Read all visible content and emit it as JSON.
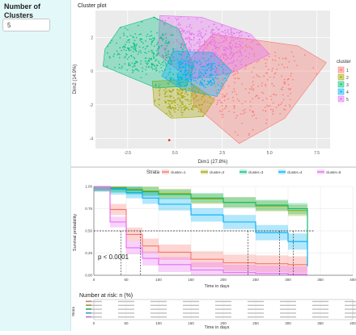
{
  "sidebar": {
    "label": "Number of\nClusters",
    "input_value": "5"
  },
  "cluster_plot": {
    "title": "Cluster plot",
    "xlabel": "Dim1 (27.8%)",
    "ylabel": "Dim2 (14.9%)",
    "x_ticks": [
      "-2.5",
      "0.0",
      "2.5",
      "5.0",
      "7.5"
    ],
    "y_ticks": [
      "2",
      "0",
      "-2",
      "-4"
    ],
    "legend_title": "cluster",
    "legend_items": [
      "1",
      "2",
      "3",
      "4",
      "5"
    ]
  },
  "survival_plot": {
    "strata_label": "Strata",
    "legend_items": [
      "cluster=1",
      "cluster=2",
      "cluster=3",
      "cluster=4",
      "cluster=5"
    ],
    "ylabel": "Survival probability",
    "xlabel": "Time in days",
    "y_ticks": [
      "1.00",
      "0.75",
      "0.50",
      "0.25",
      "0.00"
    ],
    "x_ticks": [
      "0",
      "50",
      "100",
      "150",
      "200",
      "250",
      "300",
      "350",
      "400"
    ],
    "pvalue": "p < 0.0001"
  },
  "risk_table": {
    "title": "Number at risk: n (%)",
    "strata_label": "Strata",
    "xlabel": "Time in days",
    "x_ticks": [
      "0",
      "50",
      "100",
      "150",
      "200",
      "250",
      "300",
      "350",
      "400"
    ]
  },
  "colors": {
    "cluster1": "#f8766d",
    "cluster2": "#a3a500",
    "cluster3": "#00bf7d",
    "cluster4": "#00b0f6",
    "cluster5": "#e76bf3",
    "sidebar": "#e3f8f8",
    "panel": "#ebebeb"
  },
  "chart_data": [
    {
      "type": "scatter",
      "title": "Cluster plot",
      "xlabel": "Dim1 (27.8%)",
      "ylabel": "Dim2 (14.9%)",
      "xlim": [
        -4.2,
        8.2
      ],
      "ylim": [
        -4.6,
        3.6
      ],
      "series": [
        {
          "name": "1",
          "hull": [
            [
              2.0,
              2.2
            ],
            [
              6.5,
              1.5
            ],
            [
              8.0,
              0.5
            ],
            [
              5.8,
              -2.8
            ],
            [
              3.4,
              -4.3
            ],
            [
              1.0,
              -2.0
            ],
            [
              0.7,
              0.6
            ]
          ]
        },
        {
          "name": "2",
          "hull": [
            [
              -1.2,
              -0.6
            ],
            [
              0.6,
              -0.5
            ],
            [
              2.1,
              -1.7
            ],
            [
              1.5,
              -2.7
            ],
            [
              -0.2,
              -2.8
            ],
            [
              -1.1,
              -2.0
            ]
          ]
        },
        {
          "name": "3",
          "hull": [
            [
              -2.9,
              2.6
            ],
            [
              -1.1,
              3.2
            ],
            [
              0.2,
              2.5
            ],
            [
              1.0,
              0.3
            ],
            [
              0.6,
              -0.9
            ],
            [
              -1.0,
              -1.0
            ],
            [
              -3.8,
              0.3
            ],
            [
              -3.7,
              1.3
            ]
          ]
        },
        {
          "name": "4",
          "hull": [
            [
              -0.1,
              1.2
            ],
            [
              2.0,
              1.1
            ],
            [
              3.0,
              0.0
            ],
            [
              2.2,
              -1.5
            ],
            [
              0.4,
              -1.1
            ],
            [
              -0.7,
              -0.3
            ]
          ]
        },
        {
          "name": "5",
          "hull": [
            [
              -0.8,
              3.3
            ],
            [
              1.4,
              3.2
            ],
            [
              4.0,
              2.2
            ],
            [
              5.0,
              1.0
            ],
            [
              3.0,
              -0.1
            ],
            [
              0.8,
              -0.5
            ],
            [
              -0.9,
              1.0
            ]
          ]
        }
      ]
    },
    {
      "type": "line",
      "title": "",
      "xlabel": "Time in days",
      "ylabel": "Survival probability",
      "xlim": [
        0,
        400
      ],
      "ylim": [
        0,
        1
      ],
      "x": [
        0,
        25,
        50,
        75,
        100,
        150,
        200,
        250,
        300,
        330
      ],
      "series": [
        {
          "name": "cluster=1",
          "values": [
            1.0,
            0.74,
            0.46,
            0.33,
            0.26,
            0.18,
            0.14,
            0.13,
            0.12,
            0.12
          ]
        },
        {
          "name": "cluster=2",
          "values": [
            1.0,
            0.99,
            0.97,
            0.95,
            0.92,
            0.86,
            0.82,
            0.78,
            0.73,
            0.35
          ]
        },
        {
          "name": "cluster=3",
          "values": [
            1.0,
            0.98,
            0.96,
            0.94,
            0.91,
            0.87,
            0.82,
            0.79,
            0.75,
            0.1
          ]
        },
        {
          "name": "cluster=4",
          "values": [
            1.0,
            0.97,
            0.93,
            0.87,
            0.8,
            0.68,
            0.6,
            0.48,
            0.38,
            0.1
          ]
        },
        {
          "name": "cluster=5",
          "values": [
            1.0,
            0.6,
            0.31,
            0.19,
            0.12,
            0.06,
            0.03,
            0.02,
            0.01,
            0.01
          ]
        }
      ],
      "median_lines_at": [
        42,
        72,
        238,
        287,
        308
      ]
    }
  ]
}
